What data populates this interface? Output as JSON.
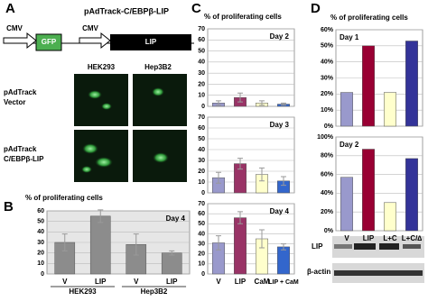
{
  "panel_labels": [
    "A",
    "B",
    "C",
    "D"
  ],
  "diagram": {
    "title": "pAdTrack-C/EBPβ-LIP",
    "promoter_1": "CMV",
    "gene_1": "GFP",
    "promoter_2": "CMV",
    "gene_2": "LIP"
  },
  "micrographs": {
    "columns": [
      "HEK293",
      "Hep3B2"
    ],
    "rows": [
      [
        "pAdTrack",
        "Vector"
      ],
      [
        "pAdTrack",
        "C/EBPβ-LIP"
      ]
    ]
  },
  "blot": {
    "labels": [
      "LIP",
      "β-actin"
    ]
  },
  "chart_data": [
    {
      "type": "bar",
      "title": "% of proliferating cells",
      "annotation": "Day 4",
      "categories": [
        "V",
        "LIP",
        "V",
        "LIP"
      ],
      "groups": [
        "HEK293",
        "Hep3B2"
      ],
      "values": [
        30,
        55,
        28,
        20
      ],
      "errors": [
        8,
        6,
        10,
        2
      ],
      "colors": [
        "#8c8c8c",
        "#8c8c8c",
        "#8c8c8c",
        "#8c8c8c"
      ],
      "ylim": [
        0,
        60
      ],
      "yticks": [
        0,
        10,
        20,
        30,
        40,
        50,
        60
      ],
      "grid": true
    },
    {
      "type": "bar",
      "title": "% of proliferating cells",
      "annotation": "Day 2",
      "values": [
        3,
        8,
        3,
        2
      ],
      "errors": [
        2,
        4,
        2,
        1
      ],
      "colors": [
        "#9999cc",
        "#993366",
        "#ffffcc",
        "#3366cc"
      ],
      "ylim": [
        0,
        70
      ],
      "yticks": [
        0,
        10,
        20,
        30,
        40,
        50,
        60,
        70
      ],
      "grid": true
    },
    {
      "type": "bar",
      "annotation": "Day 3",
      "values": [
        14,
        27,
        17,
        11
      ],
      "errors": [
        5,
        5,
        6,
        4
      ],
      "colors": [
        "#9999cc",
        "#993366",
        "#ffffcc",
        "#3366cc"
      ],
      "ylim": [
        0,
        70
      ],
      "yticks": [
        0,
        10,
        20,
        30,
        40,
        50,
        60,
        70
      ],
      "grid": true
    },
    {
      "type": "bar",
      "annotation": "Day 4",
      "categories": [
        "V",
        "LIP",
        "CaM",
        "LIP + CaM"
      ],
      "values": [
        31,
        56,
        35,
        27
      ],
      "errors": [
        7,
        6,
        9,
        3
      ],
      "colors": [
        "#9999cc",
        "#993366",
        "#ffffcc",
        "#3366cc"
      ],
      "ylim": [
        0,
        70
      ],
      "yticks": [
        0,
        10,
        20,
        30,
        40,
        50,
        60,
        70
      ],
      "grid": true
    },
    {
      "type": "bar",
      "title": "% of proliferating cells",
      "annotation": "Day 1",
      "values": [
        21,
        50,
        21,
        53
      ],
      "colors": [
        "#9999cc",
        "#990033",
        "#ffffcc",
        "#333399"
      ],
      "ylim": [
        0,
        60
      ],
      "yticks": [
        {
          "value": 0,
          "label": "0%"
        },
        {
          "value": 10,
          "label": "10%"
        },
        {
          "value": 20,
          "label": "20%"
        },
        {
          "value": 30,
          "label": "30%"
        },
        {
          "value": 40,
          "label": "40%"
        },
        {
          "value": 50,
          "label": "50%"
        },
        {
          "value": 60,
          "label": "60%"
        }
      ],
      "grid": true
    },
    {
      "type": "bar",
      "annotation": "Day 2",
      "categories": [
        "V",
        "LIP",
        "L+C",
        "L+C/∆"
      ],
      "values": [
        57,
        87,
        30,
        77
      ],
      "colors": [
        "#9999cc",
        "#990033",
        "#ffffcc",
        "#333399"
      ],
      "ylim": [
        0,
        100
      ],
      "yticks": [
        {
          "value": 0,
          "label": "0%"
        },
        {
          "value": 20,
          "label": "20%"
        },
        {
          "value": 40,
          "label": "40%"
        },
        {
          "value": 60,
          "label": "60%"
        },
        {
          "value": 80,
          "label": "80%"
        },
        {
          "value": 100,
          "label": "100%"
        }
      ],
      "grid": true
    }
  ]
}
